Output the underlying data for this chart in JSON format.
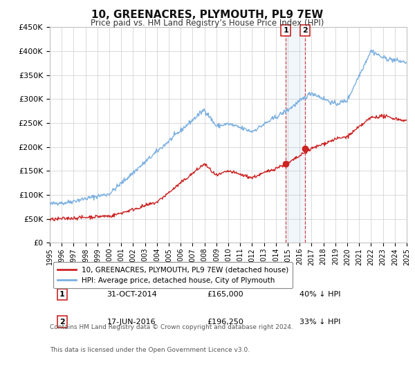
{
  "title": "10, GREENACRES, PLYMOUTH, PL9 7EW",
  "subtitle": "Price paid vs. HM Land Registry’s House Price Index (HPI)",
  "hpi_color": "#7aafe0",
  "paid_color": "#cc2222",
  "background_color": "#ffffff",
  "grid_color": "#cccccc",
  "xlim": [
    1995,
    2025
  ],
  "ylim": [
    0,
    450000
  ],
  "yticks": [
    0,
    50000,
    100000,
    150000,
    200000,
    250000,
    300000,
    350000,
    400000,
    450000
  ],
  "ytick_labels": [
    "£0",
    "£50K",
    "£100K",
    "£150K",
    "£200K",
    "£250K",
    "£300K",
    "£350K",
    "£400K",
    "£450K"
  ],
  "xticks": [
    1995,
    1996,
    1997,
    1998,
    1999,
    2000,
    2001,
    2002,
    2003,
    2004,
    2005,
    2006,
    2007,
    2008,
    2009,
    2010,
    2011,
    2012,
    2013,
    2014,
    2015,
    2016,
    2017,
    2018,
    2019,
    2020,
    2021,
    2022,
    2023,
    2024,
    2025
  ],
  "sale1_x": 2014.83,
  "sale1_y": 165000,
  "sale1_label": "1",
  "sale2_x": 2016.46,
  "sale2_y": 196250,
  "sale2_label": "2",
  "sale1_date": "31-OCT-2014",
  "sale1_price": "£165,000",
  "sale1_hpi": "40% ↓ HPI",
  "sale2_date": "17-JUN-2016",
  "sale2_price": "£196,250",
  "sale2_hpi": "33% ↓ HPI",
  "legend_line1": "10, GREENACRES, PLYMOUTH, PL9 7EW (detached house)",
  "legend_line2": "HPI: Average price, detached house, City of Plymouth",
  "footer1": "Contains HM Land Registry data © Crown copyright and database right 2024.",
  "footer2": "This data is licensed under the Open Government Licence v3.0."
}
